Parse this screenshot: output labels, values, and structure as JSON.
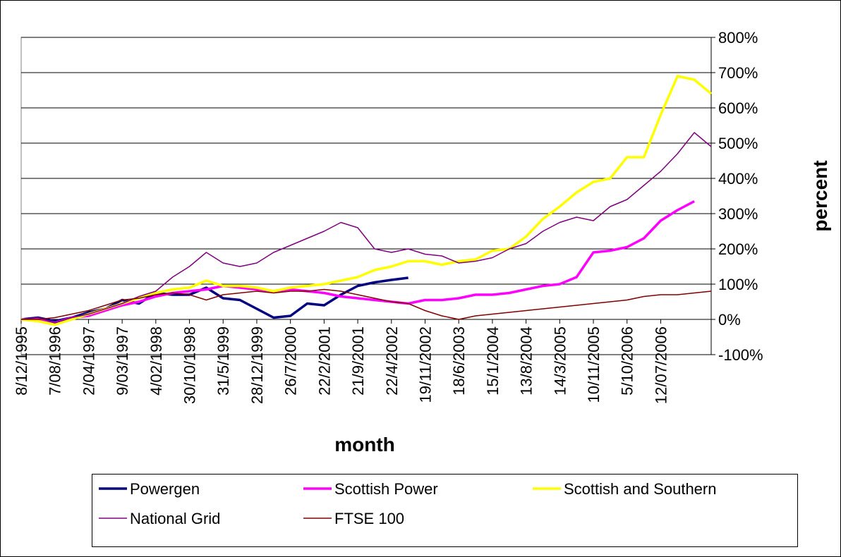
{
  "chart_data": {
    "type": "line",
    "x_label": "month",
    "y_label": "percent",
    "categories": [
      "8/12/1995",
      null,
      "7/08/1996",
      null,
      "2/04/1997",
      null,
      "9/03/1997",
      null,
      "4/02/1998",
      null,
      "30/10/1998",
      null,
      "31/5/1999",
      null,
      "28/12/1999",
      null,
      "26/7/2000",
      null,
      "22/2/2001",
      null,
      "21/9/2001",
      null,
      "22/4/2002",
      null,
      "19/11/2002",
      null,
      "18/6/2003",
      null,
      "15/1/2004",
      null,
      "13/8/2004",
      null,
      "14/3/2005",
      null,
      "10/11/2005",
      null,
      "5/10/2006",
      null,
      "12/07/2006",
      null,
      null,
      null
    ],
    "ylim": [
      -100,
      800
    ],
    "yticks": [
      {
        "value": -100,
        "label": "-100%"
      },
      {
        "value": 0,
        "label": "0%"
      },
      {
        "value": 100,
        "label": "100%"
      },
      {
        "value": 200,
        "label": "200%"
      },
      {
        "value": 300,
        "label": "300%"
      },
      {
        "value": 400,
        "label": "400%"
      },
      {
        "value": 500,
        "label": "500%"
      },
      {
        "value": 600,
        "label": "600%"
      },
      {
        "value": 700,
        "label": "700%"
      },
      {
        "value": 800,
        "label": "800%"
      }
    ],
    "grid": true,
    "legend": "bottom",
    "series": [
      {
        "name": "Powergen",
        "color": "#000080",
        "width": 3.5,
        "values": [
          0,
          5,
          -5,
          5,
          20,
          30,
          55,
          45,
          75,
          70,
          70,
          90,
          60,
          55,
          30,
          5,
          10,
          45,
          40,
          70,
          95,
          105,
          112,
          118,
          null,
          null,
          null,
          null,
          null,
          null,
          null,
          null,
          null,
          null,
          null,
          null,
          null,
          null,
          null,
          null,
          null,
          null
        ]
      },
      {
        "name": "Scottish Power",
        "color": "#ff00ff",
        "width": 3.5,
        "values": [
          0,
          0,
          -10,
          5,
          10,
          25,
          40,
          50,
          65,
          75,
          80,
          85,
          95,
          90,
          85,
          80,
          85,
          80,
          75,
          65,
          60,
          55,
          50,
          45,
          55,
          55,
          60,
          70,
          70,
          75,
          85,
          95,
          100,
          120,
          190,
          195,
          205,
          230,
          280,
          310,
          335,
          null
        ]
      },
      {
        "name": "Scottish and Southern",
        "color": "#ffff00",
        "width": 3.5,
        "values": [
          0,
          -5,
          -15,
          0,
          15,
          30,
          45,
          60,
          75,
          85,
          90,
          110,
          95,
          95,
          90,
          80,
          90,
          95,
          100,
          110,
          120,
          140,
          150,
          165,
          165,
          155,
          165,
          170,
          195,
          200,
          235,
          285,
          320,
          360,
          390,
          400,
          460,
          460,
          580,
          690,
          680,
          640
        ]
      },
      {
        "name": "National Grid",
        "color": "#800080",
        "width": 1.5,
        "values": [
          0,
          5,
          -10,
          5,
          15,
          30,
          45,
          65,
          80,
          120,
          150,
          190,
          160,
          150,
          160,
          190,
          210,
          230,
          250,
          275,
          260,
          200,
          190,
          200,
          185,
          180,
          160,
          165,
          175,
          200,
          215,
          250,
          275,
          290,
          280,
          320,
          340,
          380,
          420,
          470,
          530,
          490
        ]
      },
      {
        "name": "FTSE 100",
        "color": "#800000",
        "width": 1.5,
        "values": [
          0,
          0,
          5,
          15,
          25,
          40,
          55,
          60,
          70,
          75,
          70,
          55,
          70,
          75,
          80,
          75,
          80,
          80,
          85,
          80,
          70,
          60,
          50,
          45,
          25,
          10,
          0,
          10,
          15,
          20,
          25,
          30,
          35,
          40,
          45,
          50,
          55,
          65,
          70,
          70,
          75,
          80
        ]
      }
    ]
  }
}
